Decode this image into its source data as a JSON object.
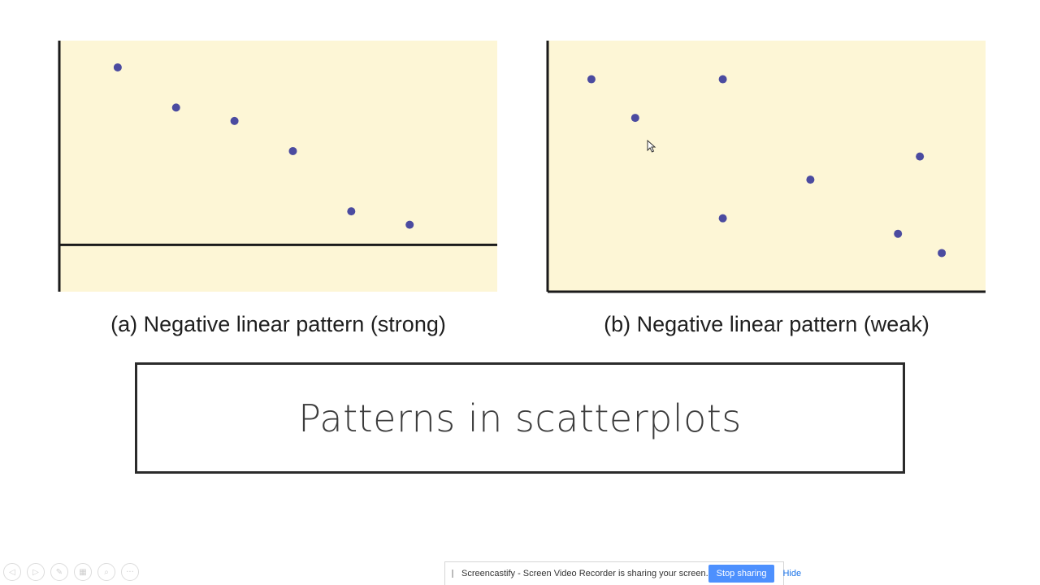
{
  "chart_data": [
    {
      "type": "scatter",
      "caption": "(a) Negative linear pattern (strong)",
      "x": [
        1,
        2,
        3,
        4,
        5,
        6
      ],
      "y": [
        5.3,
        4.1,
        3.7,
        2.8,
        1.0,
        0.6
      ],
      "xlim": [
        0,
        7.5
      ],
      "ylim": [
        -1.4,
        6.1
      ],
      "axes": "x-axis crosses at y=0",
      "point_color": "#4b4ba0",
      "background": "#fdf6d6",
      "grid": false
    },
    {
      "type": "scatter",
      "caption": "(b) Negative linear pattern (weak)",
      "x": [
        1,
        2,
        4,
        4,
        6,
        8.5,
        8,
        9
      ],
      "y": [
        5.0,
        4.0,
        5.0,
        1.4,
        2.4,
        3.0,
        1.0,
        0.5
      ],
      "xlim": [
        0,
        10
      ],
      "ylim": [
        -0.5,
        6
      ],
      "axes": "origin at bottom-left",
      "point_color": "#4b4ba0",
      "background": "#fdf6d6",
      "grid": false
    }
  ],
  "slide": {
    "title": "Patterns in scatterplots"
  },
  "controls": {
    "icons": [
      "prev-icon",
      "next-icon",
      "pen-icon",
      "slides-icon",
      "zoom-icon",
      "more-icon"
    ],
    "more_label": "···"
  },
  "share_bar": {
    "message": "Screencastify - Screen Video Recorder is sharing your screen.",
    "stop_label": "Stop sharing",
    "hide_label": "Hide"
  }
}
